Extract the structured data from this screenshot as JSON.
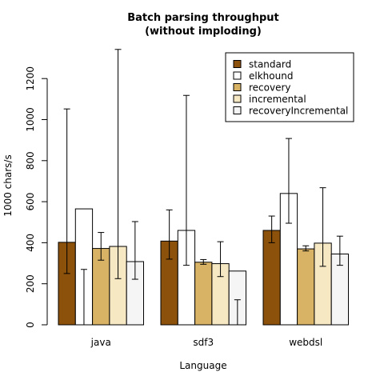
{
  "chart_data": {
    "type": "bar",
    "title": [
      "Batch parsing throughput",
      "(without imploding)"
    ],
    "xlabel": "Language",
    "ylabel": "1000 chars/s",
    "ylim": [
      0,
      1350
    ],
    "yticks": [
      0,
      200,
      400,
      600,
      800,
      1000,
      1200
    ],
    "categories": [
      "java",
      "sdf3",
      "webdsl"
    ],
    "legend_position": "top-right",
    "series": [
      {
        "name": "standard",
        "color": "#8c510a",
        "values": [
          402,
          408,
          460
        ],
        "err_low": [
          250,
          320,
          400
        ],
        "err_high": [
          1052,
          560,
          530
        ]
      },
      {
        "name": "elkhound",
        "color": "#ffffff",
        "values": [
          565,
          460,
          640
        ],
        "err_low": [
          0,
          290,
          495
        ],
        "err_high": [
          270,
          1118,
          908
        ]
      },
      {
        "name": "recovery",
        "color": "#d8b365",
        "values": [
          372,
          305,
          370
        ],
        "err_low": [
          315,
          295,
          360
        ],
        "err_high": [
          450,
          318,
          385
        ]
      },
      {
        "name": "incremental",
        "color": "#f6e8c3",
        "values": [
          382,
          298,
          398
        ],
        "err_low": [
          225,
          235,
          285
        ],
        "err_high": [
          1342,
          405,
          668
        ]
      },
      {
        "name": "recoveryIncremental",
        "color": "#f5f5f5",
        "values": [
          308,
          262,
          345
        ],
        "err_low": [
          222,
          0,
          290
        ],
        "err_high": [
          503,
          122,
          432
        ]
      }
    ]
  }
}
